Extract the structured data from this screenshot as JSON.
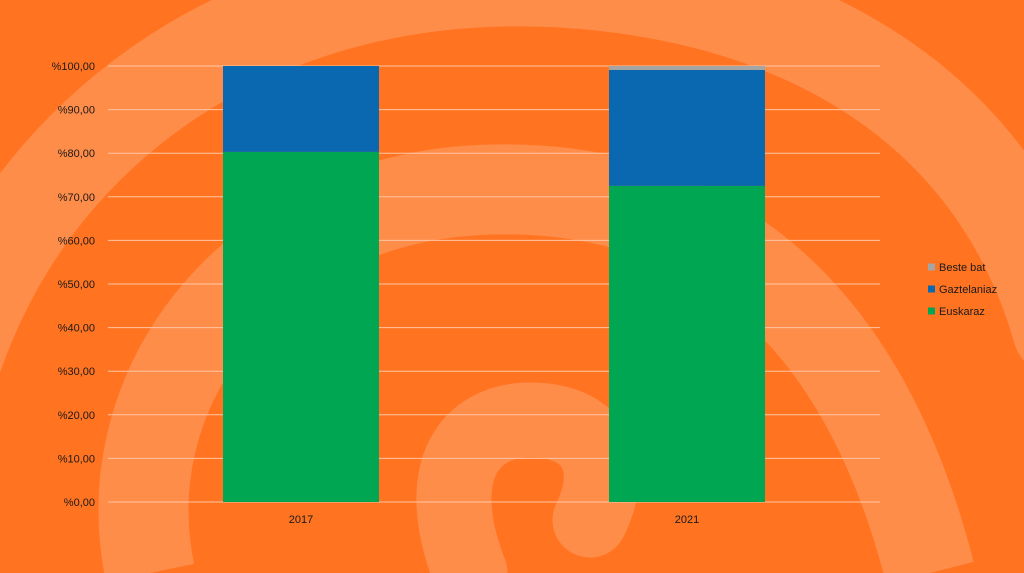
{
  "colors": {
    "background": "#ff7321",
    "swirl": "#ff8d4a",
    "gridline": "#ffc6a4",
    "euskaraz": "#00a651",
    "gaztelaniaz": "#0a68b0",
    "beste_bat": "#a5a5a5"
  },
  "chart_data": {
    "type": "bar",
    "stacked": true,
    "categories": [
      "2017",
      "2021"
    ],
    "series": [
      {
        "name": "Euskaraz",
        "values": [
          80.3,
          72.5
        ],
        "color": "#00a651"
      },
      {
        "name": "Gaztelaniaz",
        "values": [
          19.7,
          26.6
        ],
        "color": "#0a68b0"
      },
      {
        "name": "Beste bat",
        "values": [
          0.0,
          0.9
        ],
        "color": "#a5a5a5"
      }
    ],
    "y_ticks": [
      "%0,00",
      "%10,00",
      "%20,00",
      "%30,00",
      "%40,00",
      "%50,00",
      "%60,00",
      "%70,00",
      "%80,00",
      "%90,00",
      "%100,00"
    ],
    "ylim": [
      0,
      100
    ],
    "grid": true,
    "legend_position": "right",
    "legend_order": [
      "Beste bat",
      "Gaztelaniaz",
      "Euskaraz"
    ]
  }
}
